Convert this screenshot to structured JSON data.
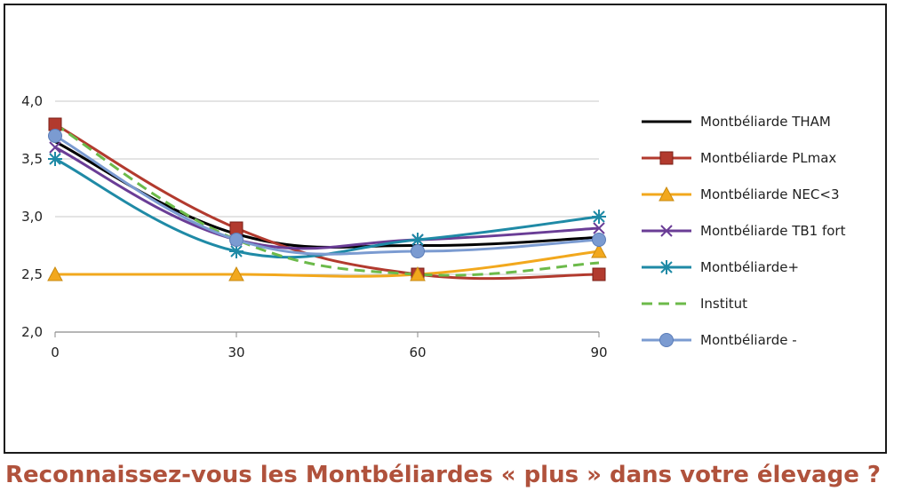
{
  "caption": "Reconnaissez-vous les Montbéliardes « plus » dans votre élevage ?",
  "chart_data": {
    "type": "line",
    "x": [
      0,
      30,
      60,
      90
    ],
    "x_tick_labels": [
      "0",
      "30",
      "60",
      "90"
    ],
    "y_tick_labels": [
      "2,0",
      "2,5",
      "3,0",
      "3,5",
      "4,0"
    ],
    "ylim": [
      2.0,
      4.0
    ],
    "xlim": [
      0,
      90
    ],
    "grid": "horizontal",
    "legend_position": "right",
    "series": [
      {
        "name": "Montbéliarde THAM",
        "values": [
          3.65,
          2.85,
          2.75,
          2.82
        ],
        "color": "#000000",
        "marker": "none",
        "dash": "solid",
        "smooth": true
      },
      {
        "name": "Montbéliarde PLmax",
        "values": [
          3.8,
          2.9,
          2.5,
          2.5
        ],
        "color": "#b23a2e",
        "marker": "square",
        "dash": "solid",
        "smooth": true
      },
      {
        "name": "Montbéliarde NEC<3",
        "values": [
          2.5,
          2.5,
          2.5,
          2.7
        ],
        "color": "#f2a81d",
        "marker": "triangle",
        "dash": "solid",
        "smooth": true
      },
      {
        "name": "Montbéliarde TB1 fort",
        "values": [
          3.6,
          2.8,
          2.8,
          2.9
        ],
        "color": "#6a3d96",
        "marker": "x",
        "dash": "solid",
        "smooth": true
      },
      {
        "name": "Montbéliarde+",
        "values": [
          3.5,
          2.7,
          2.8,
          3.0
        ],
        "color": "#1f8aa6",
        "marker": "star",
        "dash": "solid",
        "smooth": true
      },
      {
        "name": "Institut",
        "values": [
          3.8,
          2.8,
          2.5,
          2.6
        ],
        "color": "#6cba4a",
        "marker": "none",
        "dash": "dashed",
        "smooth": true
      },
      {
        "name": "Montbéliarde -",
        "values": [
          3.7,
          2.8,
          2.7,
          2.8
        ],
        "color": "#7b9bd1",
        "marker": "circle",
        "dash": "solid",
        "smooth": true
      }
    ]
  }
}
